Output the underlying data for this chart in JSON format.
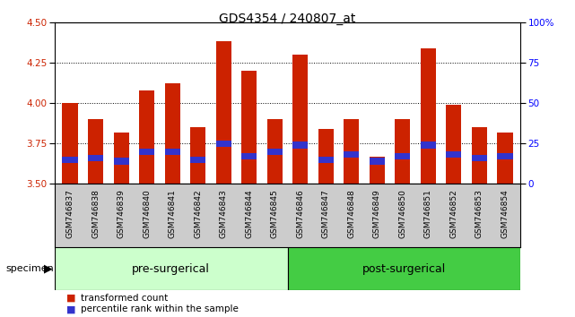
{
  "title": "GDS4354 / 240807_at",
  "samples": [
    "GSM746837",
    "GSM746838",
    "GSM746839",
    "GSM746840",
    "GSM746841",
    "GSM746842",
    "GSM746843",
    "GSM746844",
    "GSM746845",
    "GSM746846",
    "GSM746847",
    "GSM746848",
    "GSM746849",
    "GSM746850",
    "GSM746851",
    "GSM746852",
    "GSM746853",
    "GSM746854"
  ],
  "transformed_count": [
    4.0,
    3.9,
    3.82,
    4.08,
    4.12,
    3.85,
    4.38,
    4.2,
    3.9,
    4.3,
    3.84,
    3.9,
    3.67,
    3.9,
    4.34,
    3.99,
    3.85,
    3.82
  ],
  "percentile_bottom": [
    3.63,
    3.64,
    3.62,
    3.68,
    3.68,
    3.63,
    3.73,
    3.65,
    3.68,
    3.72,
    3.63,
    3.66,
    3.62,
    3.65,
    3.72,
    3.66,
    3.64,
    3.65
  ],
  "percentile_height": [
    0.04,
    0.04,
    0.04,
    0.04,
    0.04,
    0.04,
    0.04,
    0.04,
    0.04,
    0.04,
    0.04,
    0.04,
    0.04,
    0.04,
    0.04,
    0.04,
    0.04,
    0.04
  ],
  "groups": [
    {
      "label": "pre-surgerical",
      "start": 0,
      "end": 9
    },
    {
      "label": "post-surgerical",
      "start": 9,
      "end": 18
    }
  ],
  "group_colors": [
    "#ccffcc",
    "#44cc44"
  ],
  "bar_bottom": 3.5,
  "ylim": [
    3.5,
    4.5
  ],
  "yticks_left": [
    3.5,
    3.75,
    4.0,
    4.25,
    4.5
  ],
  "yticks_right": [
    0,
    25,
    50,
    75,
    100
  ],
  "bar_color": "#cc2200",
  "blue_color": "#3333cc",
  "bar_width": 0.6,
  "plot_bg": "#ffffff",
  "xlabel_bg": "#cccccc",
  "specimen_label": "specimen",
  "legend_items": [
    {
      "color": "#cc2200",
      "label": "transformed count"
    },
    {
      "color": "#3333cc",
      "label": "percentile rank within the sample"
    }
  ],
  "grid_lines": [
    3.75,
    4.0,
    4.25
  ],
  "title_fontsize": 10,
  "tick_fontsize": 7.5,
  "label_fontsize": 9
}
